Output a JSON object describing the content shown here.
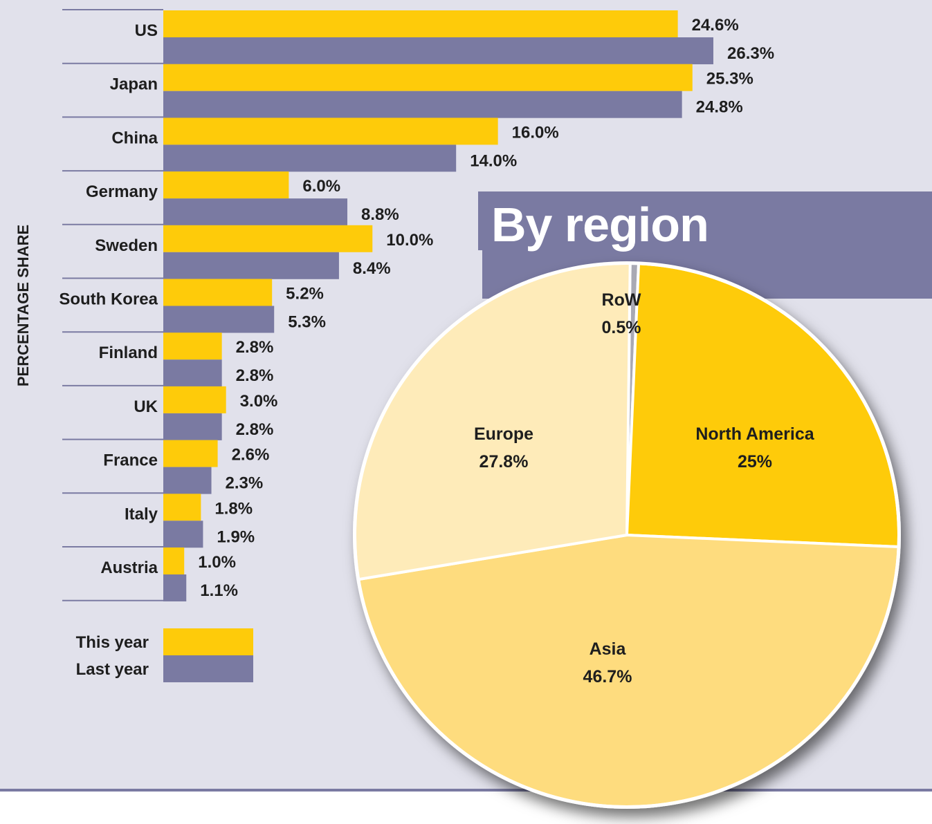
{
  "colors": {
    "background": "#e1e1eb",
    "this_year": "#fecb0a",
    "last_year": "#7a7aa2",
    "banner": "#7a7aa2",
    "rule": "#7a7aa2"
  },
  "chart_data": [
    {
      "type": "bar",
      "orientation": "horizontal",
      "ylabel": "PERCENTAGE SHARE",
      "categories": [
        "US",
        "Japan",
        "China",
        "Germany",
        "Sweden",
        "South Korea",
        "Finland",
        "UK",
        "France",
        "Italy",
        "Austria"
      ],
      "series": [
        {
          "name": "This year",
          "color": "#fecb0a",
          "values": [
            24.6,
            25.3,
            16.0,
            6.0,
            10.0,
            5.2,
            2.8,
            3.0,
            2.6,
            1.8,
            1.0
          ],
          "labels": [
            "24.6%",
            "25.3%",
            "16.0%",
            "6.0%",
            "10.0%",
            "5.2%",
            "2.8%",
            "3.0%",
            "2.6%",
            "1.8%",
            "1.0%"
          ]
        },
        {
          "name": "Last year",
          "color": "#7a7aa2",
          "values": [
            26.3,
            24.8,
            14.0,
            8.8,
            8.4,
            5.3,
            2.8,
            2.8,
            2.3,
            1.9,
            1.1
          ],
          "labels": [
            "26.3%",
            "24.8%",
            "14.0%",
            "8.8%",
            "8.4%",
            "5.3%",
            "2.8%",
            "2.8%",
            "2.3%",
            "1.9%",
            "1.1%"
          ]
        }
      ],
      "legend": {
        "position": "bottom-left",
        "entries": [
          "This year",
          "Last year"
        ]
      }
    },
    {
      "type": "pie",
      "title": "By region",
      "slices": [
        {
          "name": "RoW",
          "value": 0.5,
          "label": "0.5%",
          "color": "#a9a9b4"
        },
        {
          "name": "North America",
          "value": 25,
          "label": "25%",
          "color": "#fecb0a"
        },
        {
          "name": "Asia",
          "value": 46.7,
          "label": "46.7%",
          "color": "#fedc7e"
        },
        {
          "name": "Europe",
          "value": 27.8,
          "label": "27.8%",
          "color": "#feebb9"
        }
      ]
    }
  ]
}
